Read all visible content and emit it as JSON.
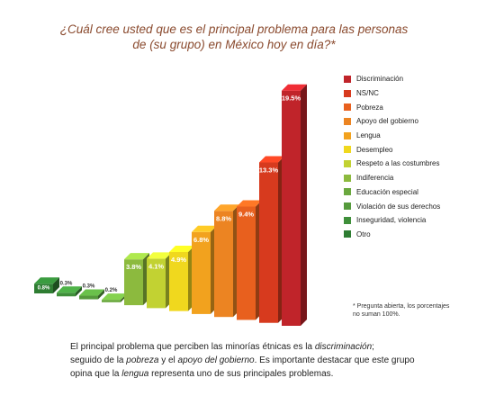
{
  "title_line1": "¿Cuál cree usted que es el principal problema para las personas",
  "title_line2": "de (su grupo) en México hoy en día?*",
  "note_line1": "* Pregunta abierta, los porcentajes",
  "note_line2": "no suman 100%.",
  "caption": {
    "p1": "El principal problema que perciben las minorías étnicas es la ",
    "em1": "discriminación",
    "p2": ";",
    "p3": "seguido de la ",
    "em2": "pobreza",
    "p4": " y el ",
    "em3": "apoyo del gobierno",
    "p5": ". Es importante destacar que este grupo",
    "p6": "opina que la ",
    "em4": "lengua",
    "p7": " representa uno de sus principales problemas."
  },
  "chart_data": {
    "type": "bar",
    "categories": [
      "Otro",
      "Inseguridad, violencia",
      "Violación de sus derechos",
      "Educación especial",
      "Indiferencia",
      "Respeto a las costumbres",
      "Desempleo",
      "Lengua",
      "Apoyo del gobierno",
      "Pobreza",
      "NS/NC",
      "Discriminación"
    ],
    "values": [
      0.8,
      0.3,
      0.3,
      0.2,
      3.8,
      4.1,
      4.9,
      6.8,
      8.8,
      9.4,
      13.3,
      19.5
    ],
    "labels": [
      "0.8%",
      "0.3%",
      "0.3%",
      "0.2%",
      "3.8%",
      "4.1%",
      "4.9%",
      "6.8%",
      "8.8%",
      "9.4%",
      "13.3%",
      "19.5%"
    ],
    "colors": [
      "#2e7d32",
      "#3f8f3a",
      "#559a3c",
      "#6aa83e",
      "#8cba3e",
      "#c2d232",
      "#f0d81e",
      "#f2a21e",
      "#ec8422",
      "#e8601e",
      "#d73a1e",
      "#c0242a"
    ],
    "legend": [
      "Discriminación",
      "NS/NC",
      "Pobreza",
      "Apoyo del gobierno",
      "Lengua",
      "Desempleo",
      "Respeto a las costumbres",
      "Indiferencia",
      "Educación especial",
      "Violación de sus derechos",
      "Inseguridad, violencia",
      "Otro"
    ],
    "legend_colors": [
      "#c0242a",
      "#d73a1e",
      "#e8601e",
      "#ec8422",
      "#f2a21e",
      "#f0d81e",
      "#c2d232",
      "#8cba3e",
      "#6aa83e",
      "#559a3c",
      "#3f8f3a",
      "#2e7d32"
    ],
    "ylim": [
      0,
      20
    ],
    "legend_position": "right"
  }
}
